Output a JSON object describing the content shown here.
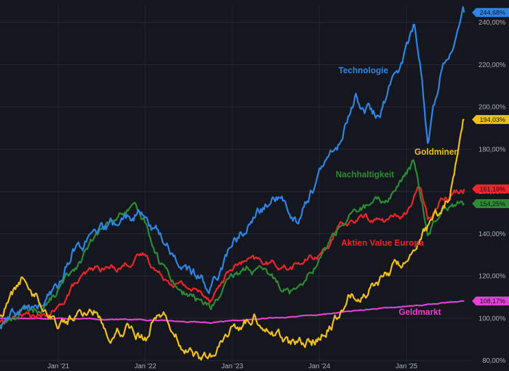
{
  "chart_data": {
    "type": "line",
    "x_range": [
      "2020-05-01",
      "2025-09-30"
    ],
    "ylim": [
      77,
      248
    ],
    "y_ticks": [
      "80,00%",
      "100,00%",
      "120,00%",
      "140,00%",
      "160,00%",
      "180,00%",
      "200,00%",
      "220,00%",
      "240,00%"
    ],
    "y_tick_values": [
      80,
      100,
      120,
      140,
      160,
      180,
      200,
      220,
      240
    ],
    "x_ticks": [
      {
        "label": "Jan '21",
        "date": "2021-01-01"
      },
      {
        "label": "Jan '22",
        "date": "2022-01-01"
      },
      {
        "label": "Jan '23",
        "date": "2023-01-01"
      },
      {
        "label": "Jan '24",
        "date": "2024-01-01"
      },
      {
        "label": "Jan '25",
        "date": "2025-01-01"
      }
    ],
    "grid": true,
    "series": [
      {
        "name": "Geldmarkt",
        "color": "#e93fd8",
        "last_value": "108,17%",
        "points": [
          [
            "2020-05-01",
            100
          ],
          [
            "2021-01-01",
            100
          ],
          [
            "2021-06-01",
            99.6
          ],
          [
            "2022-01-01",
            99.3
          ],
          [
            "2022-06-01",
            98.6
          ],
          [
            "2022-10-01",
            98
          ],
          [
            "2023-01-01",
            98.6
          ],
          [
            "2023-06-01",
            100
          ],
          [
            "2024-01-01",
            101.6
          ],
          [
            "2024-06-01",
            103.6
          ],
          [
            "2025-01-01",
            105.6
          ],
          [
            "2025-06-01",
            107.2
          ],
          [
            "2025-08-31",
            108.17
          ]
        ]
      },
      {
        "name": "Aktien Value Europa",
        "color": "#f0242a",
        "last_value": "161,19%",
        "points": [
          [
            "2020-05-01",
            98
          ],
          [
            "2020-08-01",
            102
          ],
          [
            "2020-11-01",
            100
          ],
          [
            "2021-01-01",
            104
          ],
          [
            "2021-03-01",
            115
          ],
          [
            "2021-06-01",
            123
          ],
          [
            "2021-09-01",
            124
          ],
          [
            "2022-01-01",
            130
          ],
          [
            "2022-03-01",
            121
          ],
          [
            "2022-06-01",
            116
          ],
          [
            "2022-10-01",
            110
          ],
          [
            "2023-01-01",
            124
          ],
          [
            "2023-03-01",
            127
          ],
          [
            "2023-06-01",
            126
          ],
          [
            "2023-09-01",
            124
          ],
          [
            "2024-01-01",
            130
          ],
          [
            "2024-04-01",
            143
          ],
          [
            "2024-07-01",
            148
          ],
          [
            "2024-10-01",
            146
          ],
          [
            "2025-01-01",
            150
          ],
          [
            "2025-03-01",
            162
          ],
          [
            "2025-04-01",
            148
          ],
          [
            "2025-06-01",
            158
          ],
          [
            "2025-08-31",
            161.19
          ]
        ]
      },
      {
        "name": "Nachhaltigkeit",
        "color": "#2e8b35",
        "last_value": "154,25%",
        "points": [
          [
            "2020-05-01",
            97
          ],
          [
            "2020-08-01",
            103
          ],
          [
            "2020-11-01",
            105
          ],
          [
            "2021-01-01",
            113
          ],
          [
            "2021-03-01",
            123
          ],
          [
            "2021-06-01",
            137
          ],
          [
            "2021-08-01",
            145
          ],
          [
            "2021-11-01",
            152
          ],
          [
            "2022-01-01",
            146
          ],
          [
            "2022-03-01",
            128
          ],
          [
            "2022-06-01",
            113
          ],
          [
            "2022-10-01",
            105
          ],
          [
            "2023-01-01",
            118
          ],
          [
            "2023-03-01",
            124
          ],
          [
            "2023-06-01",
            120
          ],
          [
            "2023-09-01",
            113
          ],
          [
            "2024-01-01",
            128
          ],
          [
            "2024-04-01",
            145
          ],
          [
            "2024-07-01",
            152
          ],
          [
            "2024-10-01",
            155
          ],
          [
            "2025-01-01",
            168
          ],
          [
            "2025-02-01",
            174
          ],
          [
            "2025-04-01",
            140
          ],
          [
            "2025-06-01",
            155
          ],
          [
            "2025-08-31",
            154.25
          ]
        ]
      },
      {
        "name": "Technologie",
        "color": "#2f85e6",
        "last_value": "244,68%",
        "points": [
          [
            "2020-05-01",
            96
          ],
          [
            "2020-08-01",
            103
          ],
          [
            "2020-11-01",
            106
          ],
          [
            "2021-01-01",
            115
          ],
          [
            "2021-03-01",
            132
          ],
          [
            "2021-06-01",
            138
          ],
          [
            "2021-09-01",
            145
          ],
          [
            "2021-12-01",
            150
          ],
          [
            "2022-03-01",
            140
          ],
          [
            "2022-06-01",
            125
          ],
          [
            "2022-10-01",
            115
          ],
          [
            "2023-01-01",
            135
          ],
          [
            "2023-04-01",
            147
          ],
          [
            "2023-07-01",
            158
          ],
          [
            "2023-10-01",
            147
          ],
          [
            "2024-01-01",
            168
          ],
          [
            "2024-04-01",
            184
          ],
          [
            "2024-06-01",
            205
          ],
          [
            "2024-09-01",
            195
          ],
          [
            "2024-12-01",
            218
          ],
          [
            "2025-02-01",
            238
          ],
          [
            "2025-03-01",
            222
          ],
          [
            "2025-04-01",
            182
          ],
          [
            "2025-06-01",
            222
          ],
          [
            "2025-08-31",
            244.68
          ]
        ]
      },
      {
        "name": "Goldminen",
        "color": "#f2bf1a",
        "last_value": "194,03%",
        "points": [
          [
            "2020-05-01",
            101
          ],
          [
            "2020-08-01",
            119
          ],
          [
            "2020-10-01",
            111
          ],
          [
            "2021-01-01",
            98
          ],
          [
            "2021-04-01",
            102
          ],
          [
            "2021-06-01",
            104
          ],
          [
            "2021-08-01",
            94
          ],
          [
            "2021-11-01",
            97
          ],
          [
            "2022-01-01",
            91
          ],
          [
            "2022-03-01",
            105
          ],
          [
            "2022-05-01",
            95
          ],
          [
            "2022-07-01",
            84
          ],
          [
            "2022-10-01",
            80
          ],
          [
            "2023-01-01",
            94
          ],
          [
            "2023-04-01",
            101
          ],
          [
            "2023-06-01",
            96
          ],
          [
            "2023-09-01",
            88
          ],
          [
            "2023-12-01",
            88
          ],
          [
            "2024-01-01",
            92
          ],
          [
            "2024-03-01",
            100
          ],
          [
            "2024-05-01",
            110
          ],
          [
            "2024-07-01",
            112
          ],
          [
            "2024-09-01",
            118
          ],
          [
            "2024-11-01",
            123
          ],
          [
            "2025-01-01",
            128
          ],
          [
            "2025-03-01",
            140
          ],
          [
            "2025-05-01",
            147
          ],
          [
            "2025-07-01",
            158
          ],
          [
            "2025-08-31",
            194.03
          ]
        ]
      }
    ]
  }
}
